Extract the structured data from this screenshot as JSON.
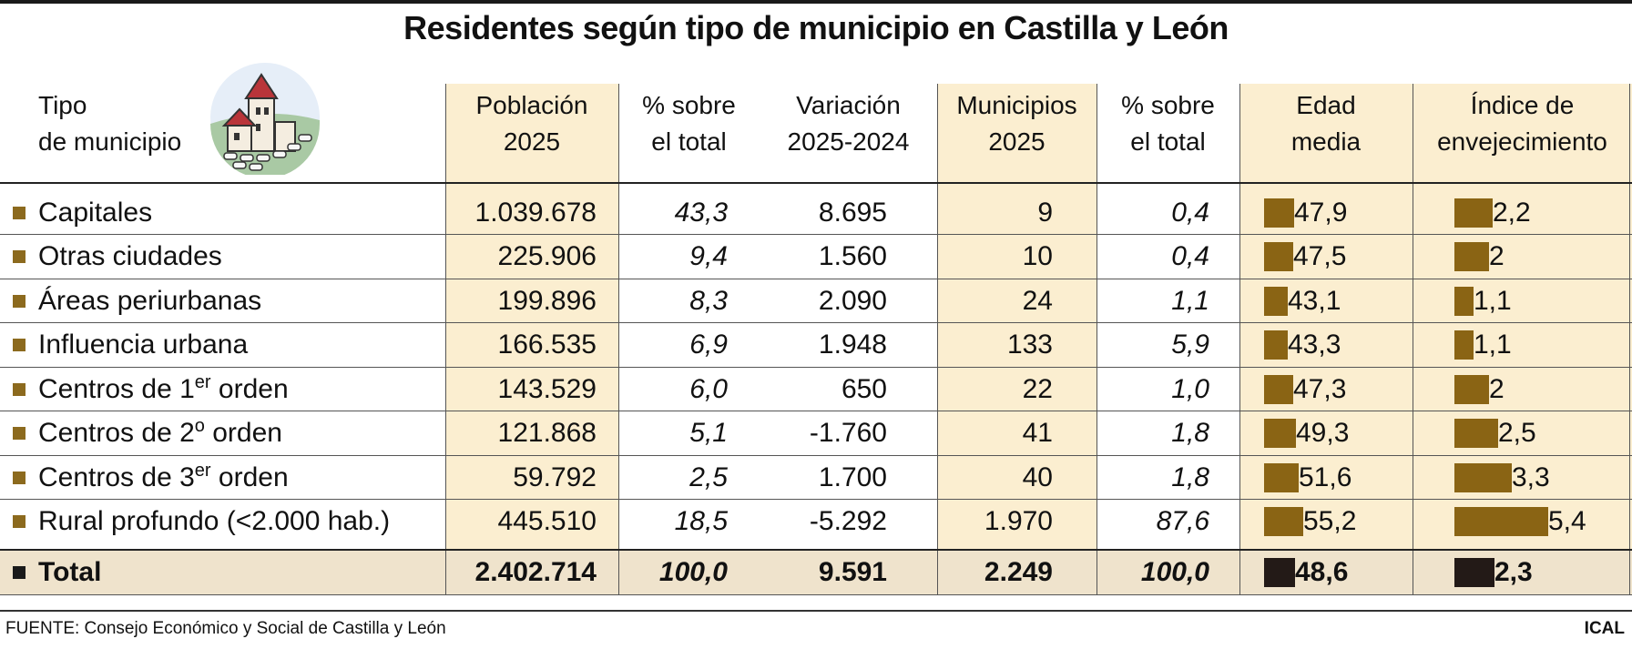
{
  "title": "Residentes según tipo de municipio en Castilla y León",
  "headers": {
    "tipo_1": "Tipo",
    "tipo_2": "de municipio",
    "poblacion_1": "Población",
    "poblacion_2": "2025",
    "pct_pob_1": "% sobre",
    "pct_pob_2": "el total",
    "variacion_1": "Variación",
    "variacion_2": "2025-2024",
    "municipios_1": "Municipios",
    "municipios_2": "2025",
    "pct_mun_1": "% sobre",
    "pct_mun_2": "el total",
    "edad_1": "Edad",
    "edad_2": "media",
    "indice_1": "Índice de",
    "indice_2": "envejecimiento"
  },
  "chart_data": {
    "type": "table",
    "title": "Residentes según tipo de municipio en Castilla y León",
    "columns": [
      "Tipo de municipio",
      "Población 2025",
      "% sobre el total",
      "Variación 2025-2024",
      "Municipios 2025",
      "% sobre el total",
      "Edad media",
      "Índice de envejecimiento"
    ],
    "rows": [
      {
        "label": "Capitales",
        "sup": "",
        "label_after": "",
        "poblacion": "1.039.678",
        "pct_pob": "43,3",
        "variacion": "8.695",
        "municipios": "9",
        "pct_mun": "0,4",
        "edad": 47.9,
        "edad_label": "47,9",
        "indice": 2.2,
        "indice_label": "2,2"
      },
      {
        "label": "Otras ciudades",
        "sup": "",
        "label_after": "",
        "poblacion": "225.906",
        "pct_pob": "9,4",
        "variacion": "1.560",
        "municipios": "10",
        "pct_mun": "0,4",
        "edad": 47.5,
        "edad_label": "47,5",
        "indice": 2.0,
        "indice_label": "2"
      },
      {
        "label": "Áreas periurbanas",
        "sup": "",
        "label_after": "",
        "poblacion": "199.896",
        "pct_pob": "8,3",
        "variacion": "2.090",
        "municipios": "24",
        "pct_mun": "1,1",
        "edad": 43.1,
        "edad_label": "43,1",
        "indice": 1.1,
        "indice_label": "1,1"
      },
      {
        "label": "Influencia urbana",
        "sup": "",
        "label_after": "",
        "poblacion": "166.535",
        "pct_pob": "6,9",
        "variacion": "1.948",
        "municipios": "133",
        "pct_mun": "5,9",
        "edad": 43.3,
        "edad_label": "43,3",
        "indice": 1.1,
        "indice_label": "1,1"
      },
      {
        "label": "Centros de 1",
        "sup": "er",
        "label_after": " orden",
        "poblacion": "143.529",
        "pct_pob": "6,0",
        "variacion": "650",
        "municipios": "22",
        "pct_mun": "1,0",
        "edad": 47.3,
        "edad_label": "47,3",
        "indice": 2.0,
        "indice_label": "2"
      },
      {
        "label": "Centros de 2",
        "sup": "o",
        "label_after": " orden",
        "poblacion": "121.868",
        "pct_pob": "5,1",
        "variacion": "-1.760",
        "municipios": "41",
        "pct_mun": "1,8",
        "edad": 49.3,
        "edad_label": "49,3",
        "indice": 2.5,
        "indice_label": "2,5"
      },
      {
        "label": "Centros de 3",
        "sup": "er",
        "label_after": " orden",
        "poblacion": "59.792",
        "pct_pob": "2,5",
        "variacion": "1.700",
        "municipios": "40",
        "pct_mun": "1,8",
        "edad": 51.6,
        "edad_label": "51,6",
        "indice": 3.3,
        "indice_label": "3,3"
      },
      {
        "label": "Rural profundo (<2.000 hab.)",
        "sup": "",
        "label_after": "",
        "poblacion": "445.510",
        "pct_pob": "18,5",
        "variacion": "-5.292",
        "municipios": "1.970",
        "pct_mun": "87,6",
        "edad": 55.2,
        "edad_label": "55,2",
        "indice": 5.4,
        "indice_label": "5,4"
      }
    ],
    "total": {
      "label": "Total",
      "poblacion": "2.402.714",
      "pct_pob": "100,0",
      "variacion": "9.591",
      "municipios": "2.249",
      "pct_mun": "100,0",
      "edad": 48.6,
      "edad_label": "48,6",
      "indice": 2.3,
      "indice_label": "2,3"
    }
  },
  "colors": {
    "bar": "#8a6414",
    "bar_total": "#231a17",
    "highlight_column": "#fbeed0",
    "marker": "#8c6a1e"
  },
  "icon": "village-houses-icon",
  "source": "FUENTE: Consejo Económico y Social de Castilla y León",
  "brand": "ICAL"
}
